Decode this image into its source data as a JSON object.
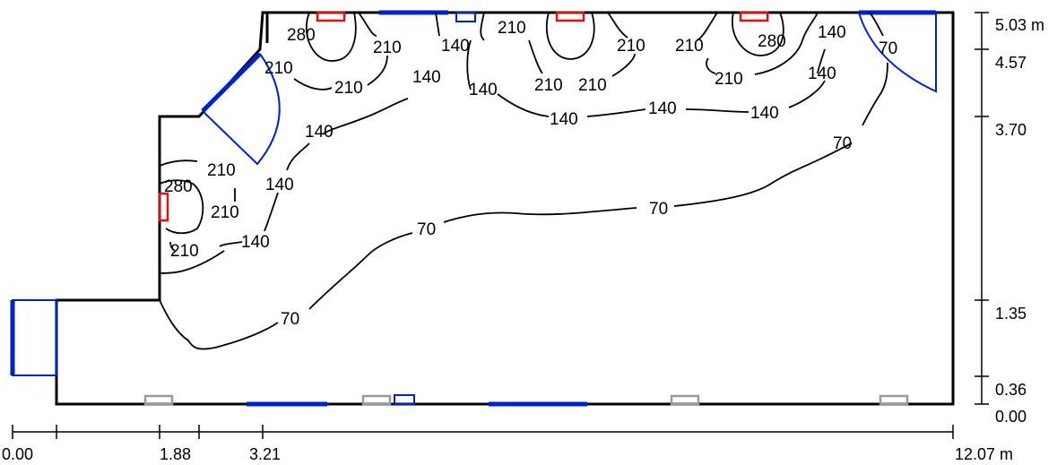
{
  "colors": {
    "wall": "#000000",
    "window": "#0022cc",
    "door": "#0022cc",
    "luminaire_red": "#e01010",
    "luminaire_gray": "#999999",
    "background": "#ffffff"
  },
  "contour_labels": [
    {
      "id": "c1",
      "text": "280"
    },
    {
      "id": "c2",
      "text": "210"
    },
    {
      "id": "c3",
      "text": "140"
    },
    {
      "id": "c4",
      "text": "210"
    },
    {
      "id": "c5",
      "text": "210"
    },
    {
      "id": "c6",
      "text": "210"
    },
    {
      "id": "c7",
      "text": "210"
    },
    {
      "id": "c8",
      "text": "280"
    },
    {
      "id": "c9",
      "text": "140"
    },
    {
      "id": "c10",
      "text": "70"
    },
    {
      "id": "c11",
      "text": "210"
    },
    {
      "id": "c12",
      "text": "140"
    },
    {
      "id": "c13",
      "text": "140"
    },
    {
      "id": "c14",
      "text": "210"
    },
    {
      "id": "c15",
      "text": "210"
    },
    {
      "id": "c16",
      "text": "210"
    },
    {
      "id": "c17",
      "text": "140"
    },
    {
      "id": "c18",
      "text": "140"
    },
    {
      "id": "c19",
      "text": "140"
    },
    {
      "id": "c20",
      "text": "140"
    },
    {
      "id": "c21",
      "text": "140"
    },
    {
      "id": "c22",
      "text": "210"
    },
    {
      "id": "c23",
      "text": "280"
    },
    {
      "id": "c24",
      "text": "210"
    },
    {
      "id": "c25",
      "text": "140"
    },
    {
      "id": "c26",
      "text": "210"
    },
    {
      "id": "c27",
      "text": "140"
    },
    {
      "id": "c28",
      "text": "70"
    },
    {
      "id": "c29",
      "text": "70"
    },
    {
      "id": "c30",
      "text": "70"
    },
    {
      "id": "c31",
      "text": "70"
    }
  ],
  "scale": {
    "y_labels": [
      "5.03 m",
      "4.57",
      "3.70",
      "1.35",
      "0.36",
      "0.00"
    ],
    "x_labels": [
      "0.00",
      "1.88",
      "3.21",
      "12.07 m"
    ]
  }
}
